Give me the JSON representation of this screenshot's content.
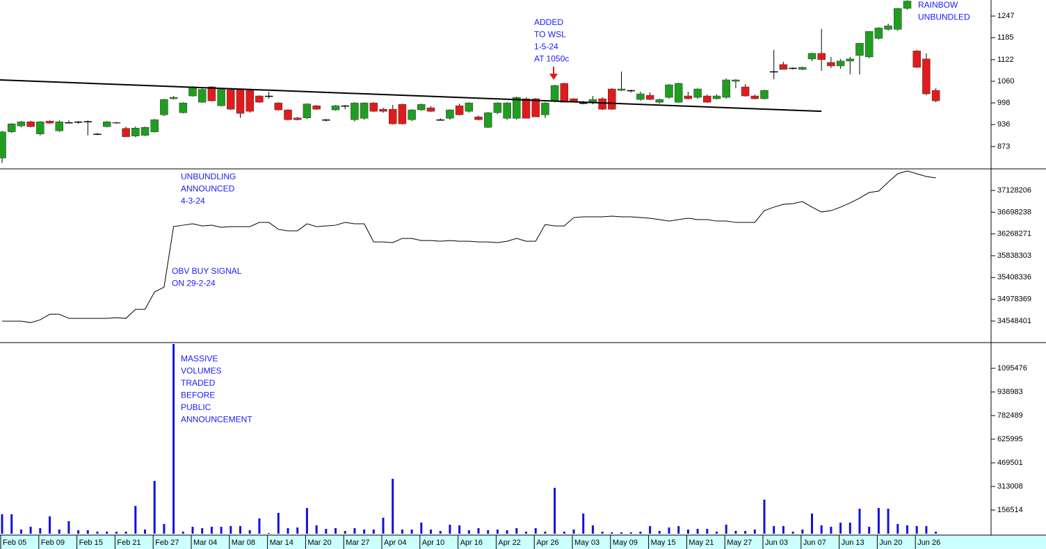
{
  "chart_data": [
    {
      "type": "candlestick",
      "up_color": "#1f9e1f",
      "down_color": "#e01b1b",
      "ylim": [
        809,
        1293
      ],
      "yticks": [
        873,
        936,
        998,
        1060,
        1122,
        1185,
        1247
      ],
      "open": [
        840,
        915,
        932,
        944,
        909,
        946,
        918,
        942,
        944,
        945,
        909,
        930,
        942,
        925,
        903,
        905,
        915,
        964,
        1010,
        970,
        1018,
        1000,
        1044,
        990,
        1036,
        1036,
        1034,
        1018,
        1018,
        998,
        978,
        955,
        955,
        990,
        950,
        978,
        990,
        950,
        954,
        998,
        980,
        980,
        994,
        950,
        978,
        984,
        950,
        954,
        990,
        974,
        958,
        928,
        970,
        954,
        954,
        1010,
        1010,
        964,
        1004,
        1054,
        1010,
        998,
        998,
        1010,
        1038,
        1034,
        1034,
        1008,
        1020,
        1000,
        1014,
        1000,
        1018,
        1014,
        1018,
        1010,
        1014,
        1060,
        1044,
        1018,
        1010,
        1088,
        1108,
        1098,
        1094,
        1124,
        1140,
        1114,
        1104,
        1118,
        1134,
        1130,
        1183,
        1209,
        1209,
        1269,
        1147,
        1124,
        1034
      ],
      "high": [
        918,
        940,
        946,
        947,
        946,
        948,
        948,
        948,
        946,
        948,
        912,
        946,
        944,
        930,
        930,
        930,
        952,
        1010,
        1018,
        1000,
        1046,
        1040,
        1046,
        1040,
        1040,
        1038,
        1036,
        1020,
        1030,
        1000,
        980,
        958,
        997,
        992,
        952,
        992,
        992,
        1000,
        1000,
        1000,
        984,
        992,
        996,
        980,
        996,
        988,
        954,
        980,
        996,
        1000,
        962,
        972,
        1000,
        1000,
        1016,
        1014,
        1012,
        1000,
        1050,
        1056,
        1012,
        1004,
        1018,
        1014,
        1040,
        1088,
        1036,
        1030,
        1028,
        1010,
        1052,
        1056,
        1030,
        1040,
        1022,
        1022,
        1068,
        1066,
        1052,
        1022,
        1036,
        1150,
        1116,
        1100,
        1102,
        1142,
        1210,
        1130,
        1124,
        1130,
        1170,
        1204,
        1215,
        1225,
        1270,
        1292,
        1150,
        1140,
        1040
      ],
      "low": [
        826,
        912,
        928,
        928,
        905,
        938,
        915,
        940,
        938,
        905,
        906,
        928,
        938,
        900,
        900,
        903,
        913,
        960,
        1008,
        968,
        1016,
        998,
        1002,
        988,
        978,
        955,
        970,
        998,
        1010,
        976,
        948,
        948,
        952,
        978,
        945,
        976,
        980,
        945,
        950,
        972,
        970,
        936,
        936,
        946,
        976,
        972,
        948,
        950,
        962,
        970,
        948,
        926,
        966,
        950,
        950,
        954,
        958,
        955,
        1000,
        1000,
        1000,
        994,
        994,
        978,
        978,
        1032,
        1028,
        1004,
        1006,
        996,
        1010,
        998,
        1008,
        1010,
        998,
        1008,
        1010,
        1040,
        1016,
        1008,
        1008,
        1066,
        1094,
        1094,
        1092,
        1118,
        1090,
        1098,
        1096,
        1080,
        1080,
        1126,
        1180,
        1205,
        1205,
        1265,
        1098,
        1020,
        1000
      ],
      "close": [
        915,
        938,
        944,
        930,
        944,
        940,
        944,
        942,
        944,
        945,
        909,
        944,
        940,
        901,
        926,
        928,
        950,
        1008,
        1014,
        998,
        1044,
        1037,
        1004,
        1037,
        980,
        968,
        974,
        1000,
        1018,
        978,
        950,
        950,
        995,
        980,
        950,
        990,
        990,
        998,
        998,
        974,
        974,
        938,
        938,
        978,
        994,
        974,
        950,
        978,
        964,
        998,
        950,
        970,
        998,
        998,
        1014,
        954,
        958,
        998,
        1048,
        1000,
        1000,
        998,
        1008,
        980,
        980,
        1038,
        1034,
        1024,
        1008,
        1008,
        1050,
        1054,
        1010,
        1038,
        1000,
        1018,
        1064,
        1064,
        1018,
        1010,
        1034,
        1088,
        1094,
        1098,
        1100,
        1140,
        1122,
        1104,
        1118,
        1124,
        1169,
        1203,
        1213,
        1219,
        1269,
        1290,
        1100,
        1024,
        1004
      ],
      "trendline": {
        "x": [
          0,
          86
        ],
        "values": [
          1064,
          974
        ]
      },
      "annotations": [
        [
          "ADDED",
          "TO WSL",
          "1-5-24",
          "AT 1050c"
        ],
        [
          "RAINBOW",
          "UNBUNDLED"
        ]
      ]
    },
    {
      "type": "line",
      "color": "#000000",
      "ylim": [
        34122600,
        37554000
      ],
      "yticks": [
        34548401,
        34978369,
        35408336,
        35838303,
        36268271,
        36698238,
        37128206
      ],
      "values": [
        34545650,
        34545650,
        34545650,
        34518176,
        34573124,
        34683020,
        34683020,
        34600598,
        34600598,
        34600598,
        34600598,
        34600598,
        34614335,
        34600598,
        34779179,
        34779179,
        35122604,
        35218763,
        36413882,
        36441356,
        36468830,
        36427619,
        36441356,
        36400145,
        36413882,
        36413882,
        36413882,
        36496304,
        36496304,
        36358934,
        36331460,
        36331460,
        36468830,
        36413882,
        36427619,
        36441356,
        36496304,
        36468830,
        36468830,
        36111668,
        36111668,
        36097931,
        36180353,
        36180353,
        36139142,
        36139142,
        36125405,
        36139142,
        36125405,
        36125405,
        36111668,
        36111668,
        36097931,
        36125405,
        36180353,
        36125405,
        36125405,
        36455093,
        36427619,
        36427619,
        36592463,
        36606200,
        36606200,
        36606200,
        36619937,
        36606200,
        36606200,
        36592463,
        36578726,
        36551252,
        36523778,
        36551252,
        36578726,
        36551252,
        36551252,
        36523778,
        36523778,
        36496304,
        36496304,
        36496304,
        36729833,
        36798518,
        36853466,
        36867203,
        36908414,
        36798518,
        36702359,
        36729833,
        36798518,
        36880940,
        36977099,
        37086995,
        37114469,
        37293050,
        37457894,
        37512842,
        37457894,
        37402946,
        37375472
      ],
      "annotations": [
        [
          "UNBUNDLING",
          "ANNOUNCED",
          "4-3-24"
        ],
        [
          "OBV BUY SIGNAL",
          "ON 29-2-24"
        ]
      ]
    },
    {
      "type": "bar",
      "color": "#1010e0",
      "ylim": [
        0,
        1265800
      ],
      "yticks": [
        156514,
        313008,
        469501,
        625995,
        782489,
        938983,
        1095476
      ],
      "categories": [
        "Feb 05",
        null,
        null,
        null,
        "Feb 09",
        null,
        null,
        null,
        "Feb 15",
        null,
        null,
        null,
        "Feb 21",
        null,
        null,
        null,
        "Feb 27",
        null,
        null,
        null,
        "Mar 04",
        null,
        null,
        null,
        "Mar 08",
        null,
        null,
        null,
        "Mar 14",
        null,
        null,
        null,
        "Mar 20",
        null,
        null,
        null,
        "Mar 27",
        null,
        null,
        null,
        "Apr 04",
        null,
        null,
        null,
        "Apr 10",
        null,
        null,
        null,
        "Apr 16",
        null,
        null,
        null,
        "Apr 22",
        null,
        null,
        null,
        "Apr 26",
        null,
        null,
        null,
        "May 03",
        null,
        null,
        null,
        "May 09",
        null,
        null,
        null,
        "May 15",
        null,
        null,
        null,
        "May 21",
        null,
        null,
        null,
        "May 27",
        null,
        null,
        null,
        "Jun 03",
        null,
        null,
        null,
        "Jun 07",
        null,
        null,
        null,
        "Jun 13",
        null,
        null,
        null,
        "Jun 20",
        null,
        null,
        null,
        "Jun 26",
        null,
        null
      ],
      "values": [
        128900,
        128900,
        27600,
        46000,
        36800,
        115100,
        27600,
        82900,
        23000,
        23000,
        13800,
        13800,
        13800,
        13800,
        184100,
        27600,
        349800,
        64400,
        1256600,
        13800,
        46000,
        36800,
        46000,
        46000,
        50600,
        50600,
        23000,
        101300,
        4600,
        138100,
        36800,
        41400,
        170300,
        55200,
        32200,
        36800,
        18400,
        36800,
        27600,
        27600,
        105900,
        363600,
        27600,
        27600,
        73600,
        27600,
        18400,
        59800,
        55200,
        23000,
        36800,
        23000,
        27600,
        23000,
        36800,
        13800,
        36800,
        13800,
        303800,
        13800,
        27600,
        133500,
        55200,
        13800,
        9200,
        9200,
        9200,
        13800,
        50600,
        18400,
        41400,
        50600,
        27600,
        32200,
        32200,
        13800,
        59800,
        18400,
        18400,
        27600,
        225500,
        50600,
        50600,
        13800,
        27600,
        133500,
        55200,
        46000,
        73600,
        73600,
        165700,
        46000,
        170300,
        165700,
        64400,
        55200,
        50600,
        50600,
        13800
      ],
      "annotations": [
        [
          "MASSIVE",
          "VOLUMES",
          "TRADED",
          "BEFORE",
          "PUBLIC",
          "ANNOUNCEMENT"
        ]
      ]
    }
  ]
}
